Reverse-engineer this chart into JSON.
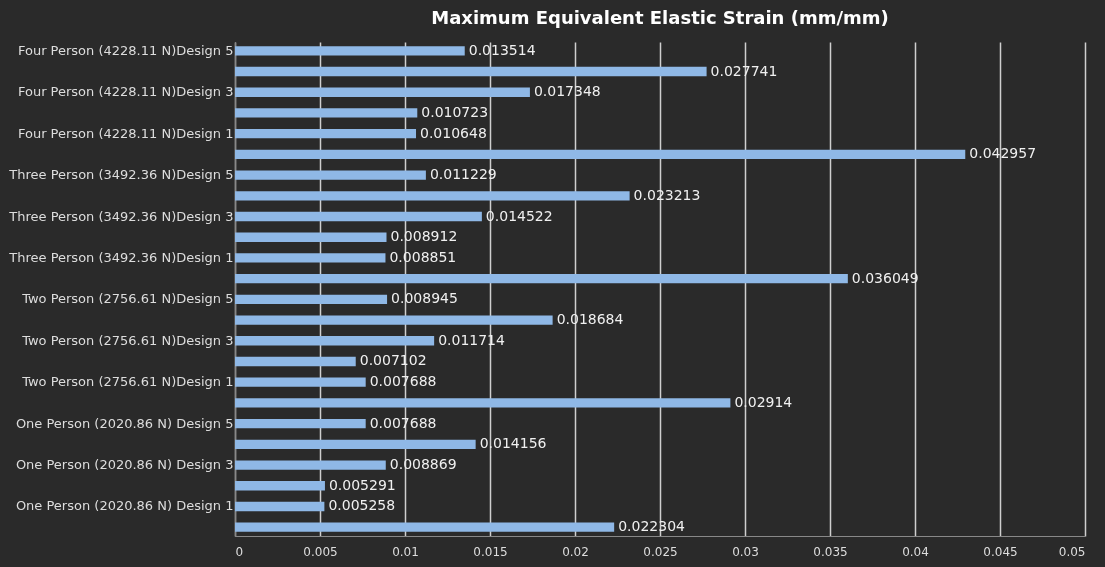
{
  "chart_data": {
    "type": "bar",
    "orientation": "horizontal",
    "title": "Maximum Equivalent Elastic Strain (mm/mm)",
    "categories": [
      "Four Person (4228.11 N)Design 5",
      null,
      "Four Person (4228.11 N)Design 3",
      null,
      "Four Person (4228.11 N)Design 1",
      null,
      "Three Person (3492.36 N)Design 5",
      null,
      "Three Person (3492.36 N)Design 3",
      null,
      "Three Person (3492.36 N)Design 1",
      null,
      "Two Person (2756.61 N)Design 5",
      null,
      "Two Person (2756.61 N)Design 3",
      null,
      "Two Person (2756.61 N)Design 1",
      null,
      "One Person (2020.86 N) Design 5",
      null,
      "One Person (2020.86 N) Design 3",
      null,
      "One Person (2020.86 N) Design 1",
      null
    ],
    "values": [
      0.013514,
      0.027741,
      0.017348,
      0.010723,
      0.010648,
      0.042957,
      0.011229,
      0.023213,
      0.014522,
      0.008912,
      0.008851,
      0.036049,
      0.008945,
      0.018684,
      0.011714,
      0.007102,
      0.007688,
      0.02914,
      0.007688,
      0.014156,
      0.008869,
      0.005291,
      0.005258,
      0.022304
    ],
    "color": "#8fb8e6",
    "xlim": [
      0,
      0.05
    ],
    "xticks": [
      0,
      0.005,
      0.01,
      0.015,
      0.02,
      0.025,
      0.03,
      0.035,
      0.04,
      0.045,
      0.05
    ],
    "grid": "x",
    "data_labels": true
  }
}
